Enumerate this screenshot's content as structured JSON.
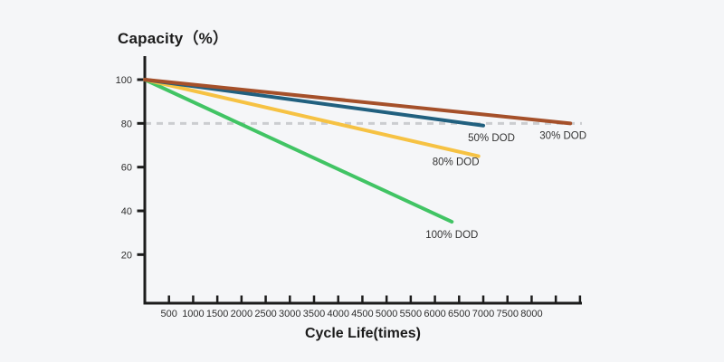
{
  "page": {
    "background": "#f5f6f8"
  },
  "chart_data": {
    "type": "line",
    "title": "Capacity（%）",
    "xlabel": "Cycle Life(times)",
    "xlim": [
      0,
      9000
    ],
    "ylim": [
      0,
      103
    ],
    "grid": false,
    "legend": "inline-labels-at-line-ends",
    "axis_color": "#1c1c1c",
    "tick_text_color": "#2e2e2e",
    "label_text_color": "#333333",
    "x_ticks": [
      {
        "v": 500,
        "label": "500"
      },
      {
        "v": 1000,
        "label": "1000"
      },
      {
        "v": 1500,
        "label": "1500"
      },
      {
        "v": 2000,
        "label": "2000"
      },
      {
        "v": 2500,
        "label": "2500"
      },
      {
        "v": 3000,
        "label": "3000"
      },
      {
        "v": 3500,
        "label": "3500"
      },
      {
        "v": 4000,
        "label": "4000"
      },
      {
        "v": 4500,
        "label": "4500"
      },
      {
        "v": 5000,
        "label": "5000"
      },
      {
        "v": 5500,
        "label": "5500"
      },
      {
        "v": 6000,
        "label": "6000"
      },
      {
        "v": 6500,
        "label": "6500"
      },
      {
        "v": 7000,
        "label": "7000"
      },
      {
        "v": 7500,
        "label": "7500"
      },
      {
        "v": 8000,
        "label": "8000"
      },
      {
        "v": 8500,
        "label": ""
      },
      {
        "v": 9000,
        "label": ""
      }
    ],
    "y_ticks": [
      {
        "v": 20,
        "label": "20"
      },
      {
        "v": 40,
        "label": "40"
      },
      {
        "v": 60,
        "label": "60"
      },
      {
        "v": 80,
        "label": "80"
      },
      {
        "v": 100,
        "label": "100"
      }
    ],
    "threshold_line": {
      "y": 80,
      "style": "dashed",
      "color": "#cbcdd0"
    },
    "series": [
      {
        "name": "100% DOD",
        "color": "#41c464",
        "points": [
          [
            0,
            100
          ],
          [
            6350,
            35
          ]
        ],
        "label_offset": [
          0,
          18
        ]
      },
      {
        "name": "80% DOD",
        "color": "#f6c243",
        "points": [
          [
            0,
            100
          ],
          [
            6900,
            65
          ]
        ],
        "label_offset": [
          -25,
          10
        ]
      },
      {
        "name": "50% DOD",
        "color": "#21607f",
        "points": [
          [
            0,
            100
          ],
          [
            7000,
            79
          ]
        ],
        "label_offset": [
          9,
          17
        ]
      },
      {
        "name": "30% DOD",
        "color": "#a5502a",
        "points": [
          [
            0,
            100
          ],
          [
            8800,
            80
          ]
        ],
        "label_offset": [
          -8,
          17
        ]
      }
    ]
  }
}
